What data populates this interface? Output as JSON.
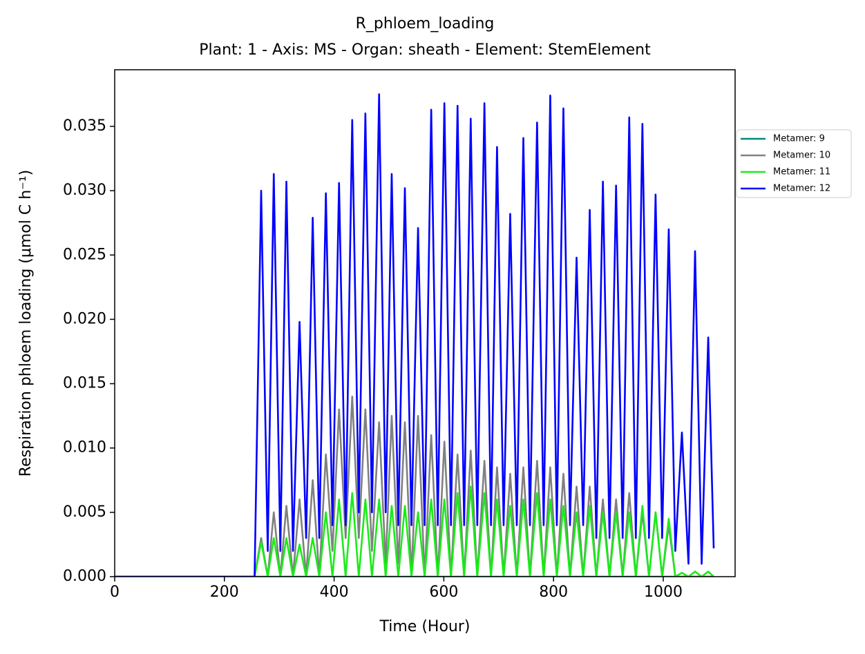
{
  "chart_data": {
    "type": "line",
    "title": "R_phloem_loading",
    "subtitle": "Plant: 1 - Axis: MS - Organ: sheath - Element: StemElement",
    "xlabel": "Time (Hour)",
    "ylabel": "Respiration phloem loading (μmol C h⁻¹)",
    "xlim": [
      0,
      1131
    ],
    "ylim": [
      0,
      0.0394
    ],
    "xticks": [
      0,
      200,
      400,
      600,
      800,
      1000
    ],
    "yticks": [
      {
        "value": 0,
        "label": "0.000"
      },
      {
        "value": 0.005,
        "label": "0.005"
      },
      {
        "value": 0.01,
        "label": "0.010"
      },
      {
        "value": 0.015,
        "label": "0.015"
      },
      {
        "value": 0.02,
        "label": "0.020"
      },
      {
        "value": 0.025,
        "label": "0.025"
      },
      {
        "value": 0.03,
        "label": "0.030"
      },
      {
        "value": 0.035,
        "label": "0.035"
      }
    ],
    "legend": "outside-right",
    "x": [
      0,
      255,
      267,
      279,
      290,
      302,
      313,
      325,
      337,
      349,
      361,
      373,
      385,
      397,
      409,
      421,
      433,
      445,
      457,
      469,
      482,
      494,
      505,
      517,
      529,
      541,
      553,
      565,
      577,
      589,
      601,
      613,
      625,
      637,
      649,
      661,
      674,
      686,
      697,
      709,
      721,
      733,
      745,
      757,
      770,
      782,
      794,
      806,
      818,
      830,
      842,
      854,
      866,
      878,
      890,
      902,
      914,
      926,
      938,
      950,
      962,
      974,
      986,
      998,
      1010,
      1022,
      1034,
      1046,
      1058,
      1070,
      1082,
      1092
    ],
    "series": [
      {
        "name": "Metamer: 9",
        "color": "#00897b",
        "values": [
          0,
          0,
          0,
          0,
          0,
          0,
          0,
          0,
          0,
          0,
          0,
          0,
          0,
          0,
          0,
          0,
          0,
          0,
          0,
          0,
          0,
          0,
          0,
          0,
          0,
          0,
          0,
          0,
          0,
          0,
          0,
          0,
          0,
          0,
          0,
          0,
          0,
          0,
          0,
          0,
          0,
          0,
          0,
          0,
          0,
          0,
          0,
          0,
          0,
          0,
          0,
          0,
          0,
          0,
          0,
          0,
          0,
          0,
          0,
          0,
          0,
          0,
          0,
          0,
          0,
          0,
          0,
          0,
          0,
          0,
          0,
          0
        ]
      },
      {
        "name": "Metamer: 10",
        "color": "#808080",
        "values": [
          0,
          0,
          0.003,
          0,
          0.005,
          0,
          0.0055,
          0,
          0.006,
          0,
          0.0075,
          0,
          0.0095,
          0.002,
          0.013,
          0.003,
          0.014,
          0.003,
          0.013,
          0.002,
          0.012,
          0.001,
          0.0125,
          0.001,
          0.012,
          0,
          0.0125,
          0,
          0.011,
          0,
          0.0105,
          0,
          0.0095,
          0,
          0.0098,
          0,
          0.009,
          0,
          0.0085,
          0,
          0.008,
          0,
          0.0085,
          0,
          0.009,
          0,
          0.0085,
          0,
          0.008,
          0,
          0.007,
          0,
          0.007,
          0,
          0.006,
          0,
          0.006,
          0,
          0.0065,
          0,
          0.005,
          0,
          0.005,
          0,
          0.004,
          0,
          0,
          0,
          0,
          0,
          0,
          0
        ]
      },
      {
        "name": "Metamer: 11",
        "color": "#1aeb1a",
        "values": [
          0,
          0,
          0.0027,
          0,
          0.003,
          0,
          0.003,
          0,
          0.0025,
          0,
          0.003,
          0,
          0.005,
          0,
          0.006,
          0,
          0.0065,
          0,
          0.006,
          0,
          0.006,
          0,
          0.0055,
          0,
          0.0055,
          0,
          0.005,
          0,
          0.006,
          0,
          0.006,
          0,
          0.0065,
          0,
          0.007,
          0,
          0.0065,
          0,
          0.006,
          0,
          0.0055,
          0,
          0.006,
          0,
          0.0065,
          0,
          0.006,
          0,
          0.0055,
          0,
          0.005,
          0,
          0.0055,
          0,
          0.005,
          0,
          0.005,
          0,
          0.005,
          0,
          0.0055,
          0,
          0.005,
          0,
          0.0045,
          0,
          0.0003,
          0,
          0.0004,
          0,
          0.0004,
          0
        ]
      },
      {
        "name": "Metamer: 12",
        "color": "#0000ff",
        "values": [
          0,
          0,
          0.03,
          0.002,
          0.0313,
          0.002,
          0.0307,
          0.002,
          0.0198,
          0.003,
          0.0279,
          0.003,
          0.0298,
          0.004,
          0.0306,
          0.004,
          0.0355,
          0.005,
          0.036,
          0.005,
          0.0375,
          0.005,
          0.0313,
          0.004,
          0.0302,
          0.004,
          0.0271,
          0.004,
          0.0363,
          0.004,
          0.0368,
          0.004,
          0.0366,
          0.004,
          0.0356,
          0.004,
          0.0368,
          0.004,
          0.0334,
          0.004,
          0.0282,
          0.004,
          0.0341,
          0.004,
          0.0353,
          0.004,
          0.0374,
          0.004,
          0.0364,
          0.004,
          0.0248,
          0.004,
          0.0285,
          0.003,
          0.0307,
          0.003,
          0.0304,
          0.003,
          0.0357,
          0.003,
          0.0352,
          0.003,
          0.0297,
          0.003,
          0.027,
          0.002,
          0.0112,
          0.001,
          0.0253,
          0.001,
          0.0186,
          0.0022
        ]
      }
    ]
  }
}
